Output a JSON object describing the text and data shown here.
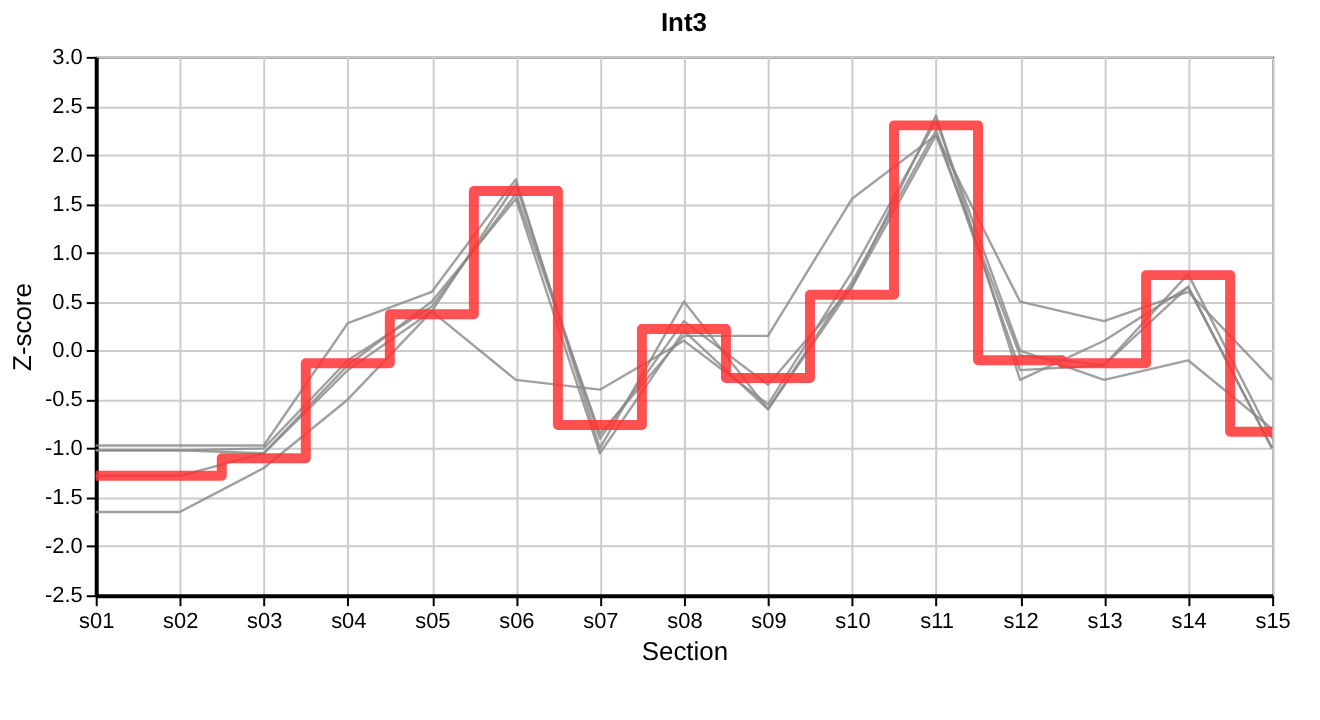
{
  "chart_data": {
    "type": "line",
    "title": "Int3",
    "xlabel": "Section",
    "ylabel": "Z-score",
    "categories": [
      "s01",
      "s02",
      "s03",
      "s04",
      "s05",
      "s06",
      "s07",
      "s08",
      "s09",
      "s10",
      "s11",
      "s12",
      "s13",
      "s14",
      "s15"
    ],
    "series": [
      {
        "color": "#888888",
        "values": [
          -0.97,
          -0.97,
          -0.97,
          0.28,
          0.6,
          1.75,
          -1.0,
          0.5,
          -0.6,
          0.65,
          2.4,
          -0.3,
          0.1,
          0.65,
          -1.0
        ]
      },
      {
        "color": "#888888",
        "values": [
          -1.02,
          -1.02,
          -1.0,
          -0.1,
          0.45,
          1.6,
          -0.85,
          0.15,
          0.15,
          1.55,
          2.2,
          0.5,
          0.3,
          0.6,
          -0.3
        ]
      },
      {
        "color": "#888888",
        "values": [
          -1.65,
          -1.65,
          -1.2,
          -0.5,
          0.4,
          -0.3,
          -0.4,
          0.1,
          -0.55,
          0.8,
          2.35,
          0.0,
          -0.3,
          -0.1,
          -0.8
        ]
      },
      {
        "color": "#888888",
        "values": [
          -1.28,
          -1.28,
          -1.05,
          -0.2,
          0.4,
          1.7,
          -0.9,
          0.3,
          -0.35,
          0.65,
          2.2,
          -0.05,
          -0.15,
          0.78,
          -0.9
        ]
      },
      {
        "color": "#888888",
        "values": [
          -1.02,
          -1.02,
          -1.05,
          -0.15,
          0.5,
          1.55,
          -1.05,
          0.2,
          -0.6,
          0.7,
          2.25,
          -0.2,
          -0.15,
          0.65,
          -1.0
        ]
      },
      {
        "type": "step",
        "color": "#ff3333",
        "values": [
          -1.28,
          -1.28,
          -1.1,
          -0.13,
          0.37,
          1.63,
          -0.76,
          0.22,
          -0.28,
          0.57,
          2.3,
          -0.1,
          -0.13,
          0.77,
          -0.83
        ]
      }
    ],
    "ylim": [
      -2.5,
      3.0
    ],
    "yticks": [
      {
        "value": -2.5,
        "label": "-2.5"
      },
      {
        "value": -2.0,
        "label": "-2.0"
      },
      {
        "value": -1.5,
        "label": "-1.5"
      },
      {
        "value": -1.0,
        "label": "-1.0"
      },
      {
        "value": -0.5,
        "label": "-0.5"
      },
      {
        "value": 0.0,
        "label": "0.0"
      },
      {
        "value": 0.5,
        "label": "0.5"
      },
      {
        "value": 1.0,
        "label": "1.0"
      },
      {
        "value": 1.5,
        "label": "1.5"
      },
      {
        "value": 2.0,
        "label": "2.0"
      },
      {
        "value": 2.5,
        "label": "2.5"
      },
      {
        "value": 3.0,
        "label": "3.0"
      }
    ],
    "grid": true
  }
}
